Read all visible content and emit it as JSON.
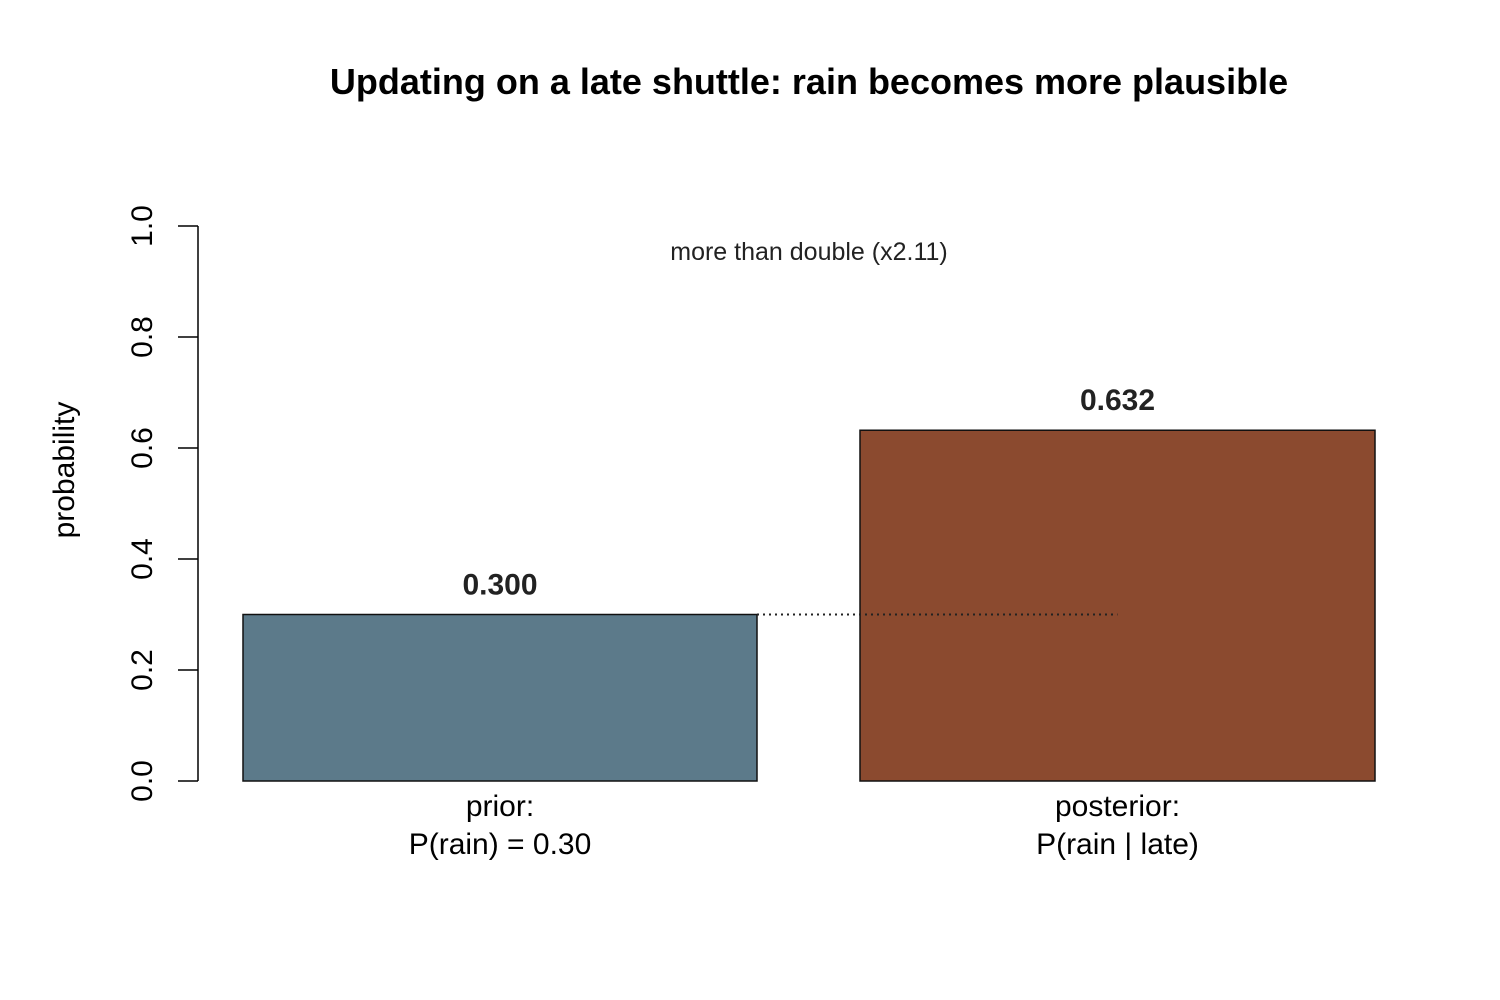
{
  "chart_data": {
    "type": "bar",
    "title": "Updating on a late shuttle: rain becomes more plausible",
    "ylabel": "probability",
    "xlabel": "",
    "ylim": [
      0,
      1
    ],
    "yticks": [
      "0.0",
      "0.2",
      "0.4",
      "0.6",
      "0.8",
      "1.0"
    ],
    "categories": [
      [
        "prior:",
        "P(rain) = 0.30"
      ],
      [
        "posterior:",
        "P(rain | late)"
      ]
    ],
    "values": [
      0.3,
      0.632
    ],
    "value_labels": [
      "0.300",
      "0.632"
    ],
    "colors": [
      "#5c7a8a",
      "#8b4a2f"
    ],
    "reference_line": {
      "y": 0.3,
      "style": "dotted"
    },
    "annotation": "more than double (x2.11)",
    "grid": false
  }
}
